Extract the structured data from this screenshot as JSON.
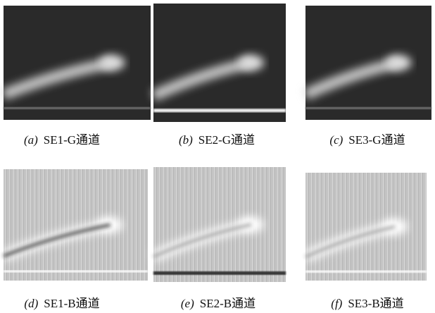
{
  "panels": [
    {
      "label": "(a)",
      "caption": "SE1-G通道"
    },
    {
      "label": "(b)",
      "caption": "SE2-G通道"
    },
    {
      "label": "(c)",
      "caption": "SE3-G通道"
    },
    {
      "label": "(d)",
      "caption": "SE1-B通道"
    },
    {
      "label": "(e)",
      "caption": "SE2-B通道"
    },
    {
      "label": "(f)",
      "caption": "SE3-B通道"
    }
  ]
}
